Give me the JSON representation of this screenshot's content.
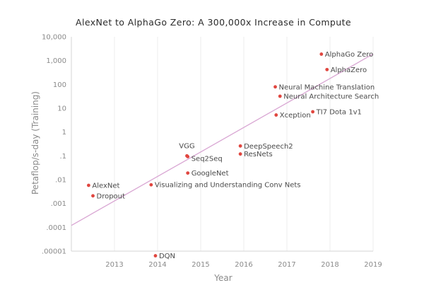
{
  "chart_data": {
    "type": "scatter",
    "title": "AlexNet to AlphaGo Zero: A 300,000x Increase in Compute",
    "xlabel": "Year",
    "ylabel": "Petaflop/s-day (Training)",
    "x_scale": "linear",
    "y_scale": "log",
    "xlim": [
      2012.0,
      2019.0
    ],
    "ylim": [
      1e-05,
      10000
    ],
    "x_ticks": [
      2013,
      2014,
      2015,
      2016,
      2017,
      2018,
      2019
    ],
    "y_ticks": [
      {
        "value": 10000,
        "label": "10,000"
      },
      {
        "value": 1000,
        "label": "1,000"
      },
      {
        "value": 100,
        "label": "100"
      },
      {
        "value": 10,
        "label": "10"
      },
      {
        "value": 1,
        "label": "1"
      },
      {
        "value": 0.1,
        "label": ".1"
      },
      {
        "value": 0.01,
        "label": ".01"
      },
      {
        "value": 0.001,
        "label": ".001"
      },
      {
        "value": 0.0001,
        "label": ".0001"
      },
      {
        "value": 1e-05,
        "label": ".00001"
      }
    ],
    "grid": {
      "vertical": true,
      "horizontal": false
    },
    "colors": {
      "point": "#e0463f",
      "trend": "#d9a6d3",
      "grid": "#ececec",
      "axis": "#d6d6d6"
    },
    "trend_line": {
      "start": {
        "x": 2012.0,
        "y": 0.00012
      },
      "end": {
        "x": 2019.0,
        "y": 1900
      }
    },
    "points": [
      {
        "name": "AlexNet",
        "x": 2012.4,
        "y": 0.0058
      },
      {
        "name": "Dropout",
        "x": 2012.5,
        "y": 0.0021
      },
      {
        "name": "DQN",
        "x": 2013.95,
        "y": 6.4e-06
      },
      {
        "name": "Visualizing and Understanding Conv Nets",
        "x": 2013.85,
        "y": 0.0061
      },
      {
        "name": "GoogleNet",
        "x": 2014.7,
        "y": 0.019
      },
      {
        "name": "VGG",
        "x": 2014.68,
        "y": 0.1
      },
      {
        "name": "Seq2Seq",
        "x": 2014.7,
        "y": 0.093
      },
      {
        "name": "DeepSpeech2",
        "x": 2015.92,
        "y": 0.26
      },
      {
        "name": "ResNets",
        "x": 2015.92,
        "y": 0.12
      },
      {
        "name": "Neural Machine Translation",
        "x": 2016.73,
        "y": 79
      },
      {
        "name": "Neural Architecture Search",
        "x": 2016.84,
        "y": 32
      },
      {
        "name": "Xception",
        "x": 2016.75,
        "y": 5.2
      },
      {
        "name": "TI7 Dota 1v1",
        "x": 2017.6,
        "y": 7.1
      },
      {
        "name": "AlphaGo Zero",
        "x": 2017.8,
        "y": 1870
      },
      {
        "name": "AlphaZero",
        "x": 2017.93,
        "y": 420
      }
    ]
  }
}
